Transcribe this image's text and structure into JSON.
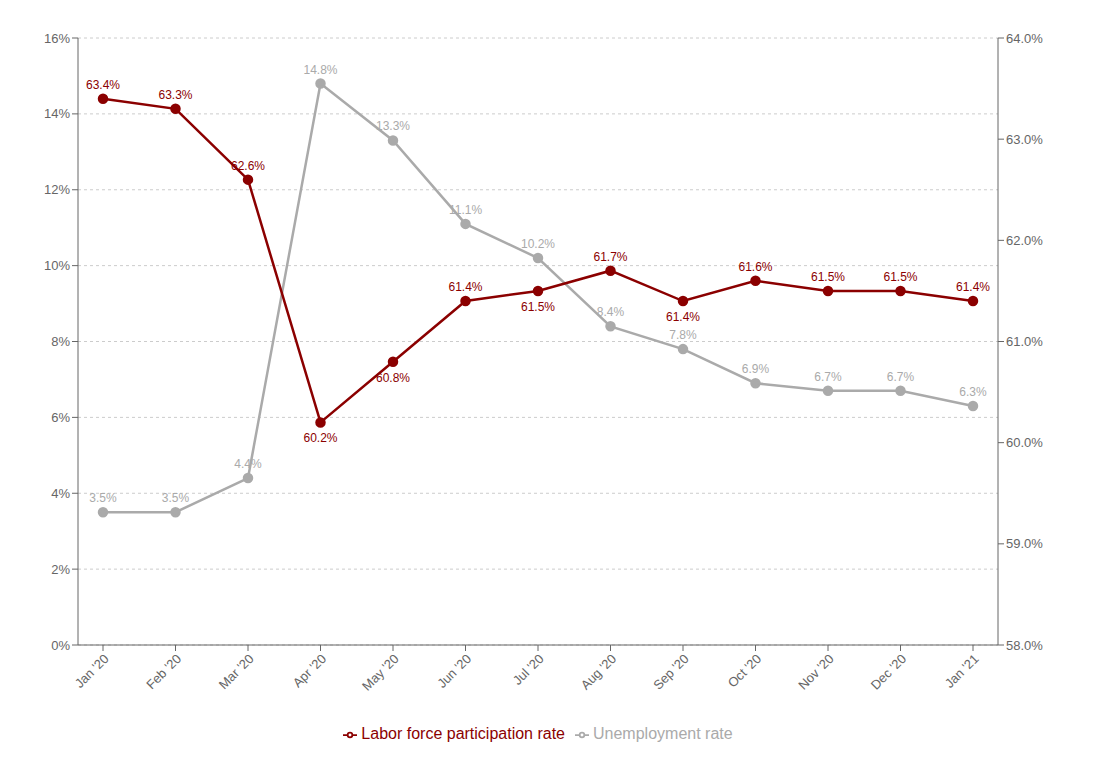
{
  "chart_data": {
    "type": "line",
    "categories": [
      "Jan '20",
      "Feb '20",
      "Mar '20",
      "Apr '20",
      "May '20",
      "Jun '20",
      "Jul '20",
      "Aug '20",
      "Sep '20",
      "Oct '20",
      "Nov '20",
      "Dec '20",
      "Jan '21"
    ],
    "series": [
      {
        "name": "Unemployment rate",
        "color": "#aaaaaa",
        "marker": "circle",
        "axis": "y",
        "values": [
          3.5,
          3.5,
          4.4,
          14.8,
          13.3,
          11.1,
          10.2,
          8.4,
          7.8,
          6.9,
          6.7,
          6.7,
          6.3
        ],
        "value_labels": [
          "3.5%",
          "3.5%",
          "4.4%",
          "14.8%",
          "13.3%",
          "11.1%",
          "10.2%",
          "8.4%",
          "7.8%",
          "6.9%",
          "6.7%",
          "6.7%",
          "6.3%"
        ]
      },
      {
        "name": "Labor force participation rate",
        "color": "#8B0000",
        "marker": "circle",
        "axis": "y2",
        "values": [
          63.4,
          63.3,
          62.6,
          60.2,
          60.8,
          61.4,
          61.5,
          61.7,
          61.4,
          61.6,
          61.5,
          61.5,
          61.4
        ],
        "value_labels": [
          "63.4%",
          "63.3%",
          "62.6%",
          "60.2%",
          "60.8%",
          "61.4%",
          "61.5%",
          "61.7%",
          "61.4%",
          "61.6%",
          "61.5%",
          "61.5%",
          "61.4%"
        ]
      }
    ],
    "ylim": [
      0,
      16
    ],
    "yticks": [
      {
        "value": 0,
        "label": "0%"
      },
      {
        "value": 2,
        "label": "2%"
      },
      {
        "value": 4,
        "label": "4%"
      },
      {
        "value": 6,
        "label": "6%"
      },
      {
        "value": 8,
        "label": "8%"
      },
      {
        "value": 10,
        "label": "10%"
      },
      {
        "value": 12,
        "label": "12%"
      },
      {
        "value": 14,
        "label": "14%"
      },
      {
        "value": 16,
        "label": "16%"
      }
    ],
    "y2lim": [
      58.0,
      64.0
    ],
    "y2ticks": [
      {
        "value": 58.0,
        "label": "58.0%"
      },
      {
        "value": 59.0,
        "label": "59.0%"
      },
      {
        "value": 60.0,
        "label": "60.0%"
      },
      {
        "value": 61.0,
        "label": "61.0%"
      },
      {
        "value": 62.0,
        "label": "62.0%"
      },
      {
        "value": 63.0,
        "label": "63.0%"
      },
      {
        "value": 64.0,
        "label": "64.0%"
      }
    ],
    "grid": true,
    "legend": "bottom",
    "data_labels": true
  }
}
